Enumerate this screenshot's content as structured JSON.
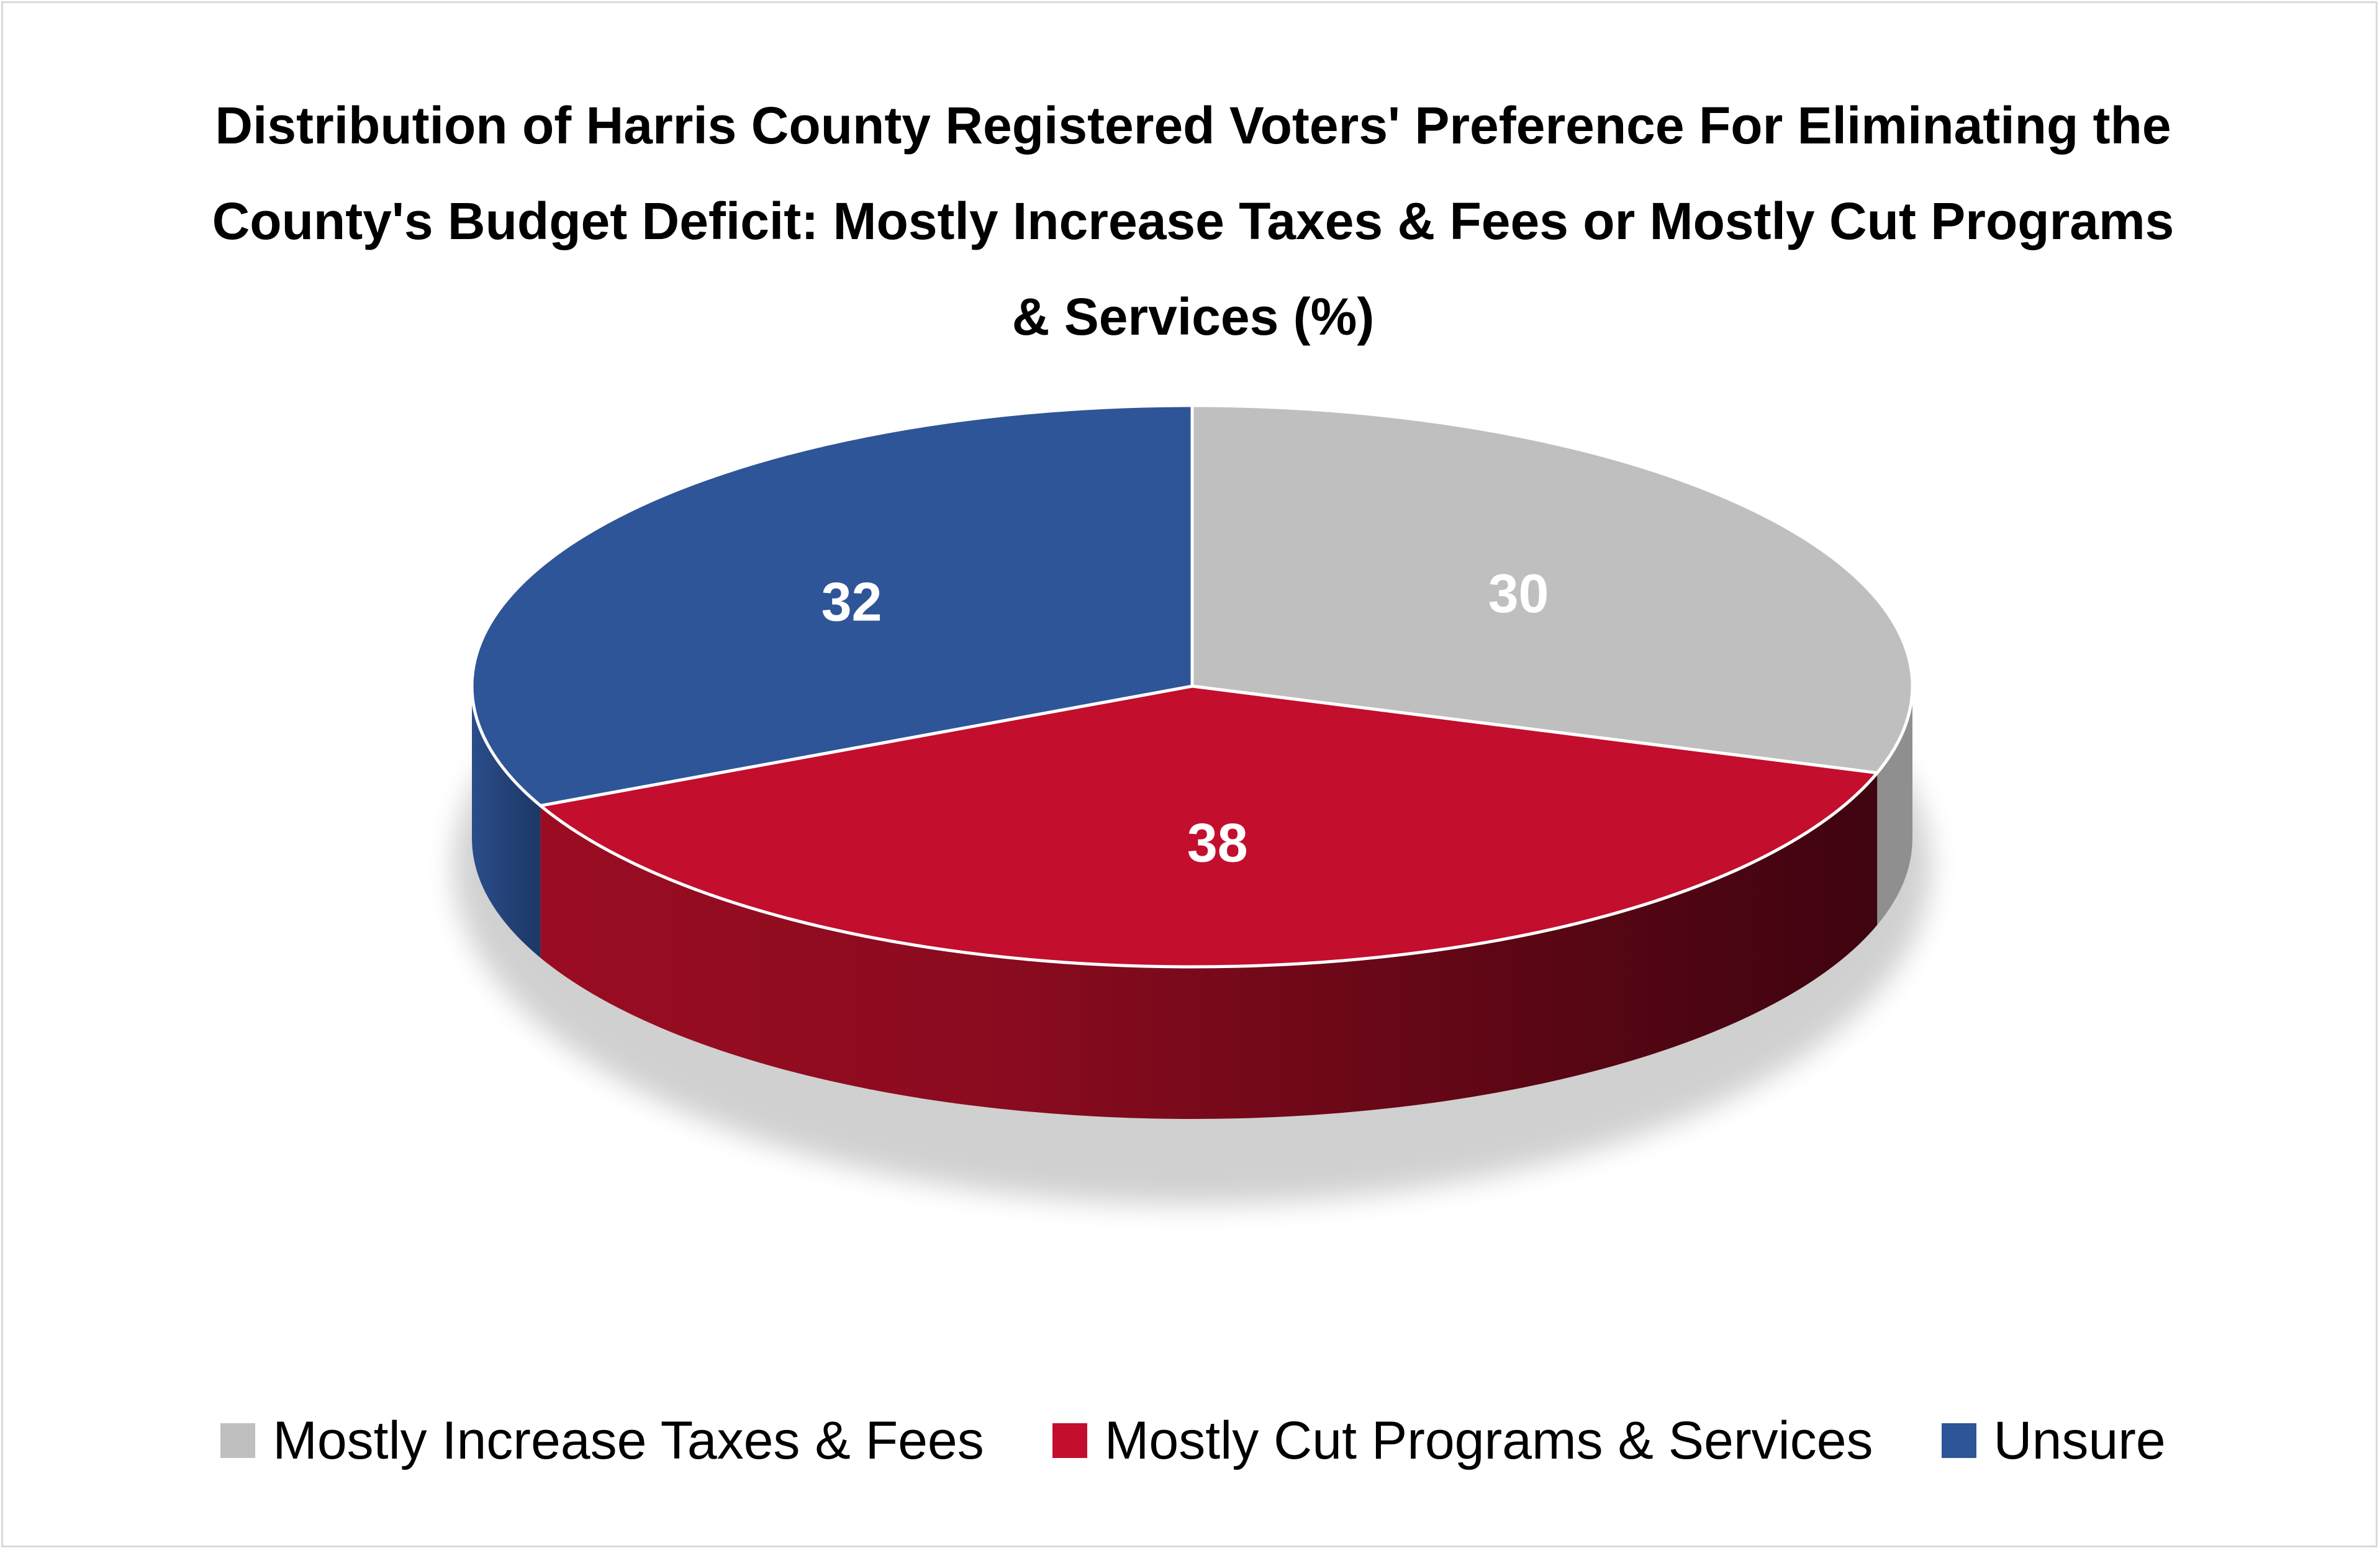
{
  "chart_data": {
    "type": "pie",
    "title": "Distribution of Harris County Registered Voters' Preference For Eliminating the County's Budget Deficit: Mostly Increase Taxes & Fees or Mostly Cut Programs & Services (%)",
    "style": "3d",
    "legend": "bottom",
    "slices": [
      {
        "label": "Mostly Increase Taxes & Fees",
        "value": 30,
        "color": "#bfbfbf"
      },
      {
        "label": "Mostly Cut Programs & Services",
        "value": 38,
        "color": "#c30e2e"
      },
      {
        "label": "Unsure",
        "value": 32,
        "color": "#2e5597"
      }
    ]
  }
}
